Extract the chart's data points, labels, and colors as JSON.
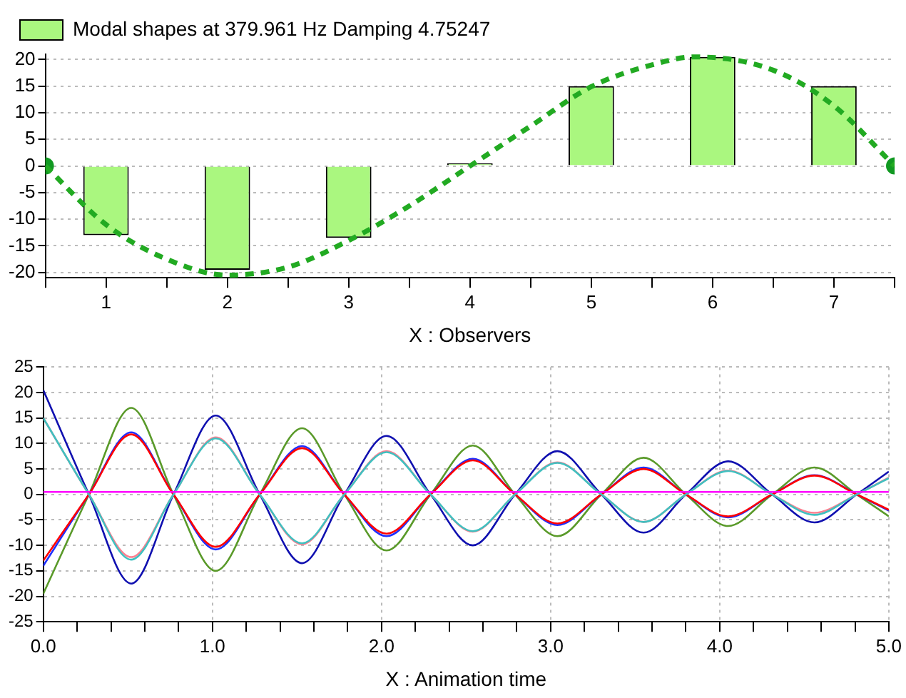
{
  "chart_data": [
    {
      "type": "bar",
      "xlabel": "X : Observers",
      "legend": "top",
      "grid": "y",
      "x": [
        1,
        2,
        3,
        4,
        5,
        6,
        7
      ],
      "xlim": [
        0.5,
        7.5
      ],
      "xticks": [
        {
          "value": 0.5,
          "label": null
        },
        1,
        {
          "value": 1.5,
          "label": null
        },
        2,
        {
          "value": 2.5,
          "label": null
        },
        3,
        {
          "value": 3.5,
          "label": null
        },
        4,
        {
          "value": 4.5,
          "label": null
        },
        5,
        {
          "value": 5.5,
          "label": null
        },
        6,
        {
          "value": 6.5,
          "label": null
        },
        7,
        {
          "value": 7.5,
          "label": null
        }
      ],
      "ylim": [
        -21,
        21
      ],
      "yticks": [
        -20,
        -15,
        -10,
        -5,
        0,
        5,
        10,
        15,
        20
      ],
      "series": [
        {
          "name": "Modal shapes at 379.961 Hz Damping 4.75247",
          "color": "#aaf77f",
          "values": [
            -13,
            -19.5,
            -13.5,
            0.5,
            15,
            20.5,
            15
          ]
        },
        {
          "type": "line",
          "color": "#22aa22",
          "line_style": "dashed",
          "marker": "none",
          "x": [
            0.5,
            1,
            1.5,
            2,
            2.5,
            3,
            3.5,
            4,
            4.5,
            5,
            5.5,
            5.85,
            6.5,
            7,
            7.5
          ],
          "values": [
            0,
            -11,
            -17.5,
            -20.5,
            -19,
            -14,
            -7.5,
            0,
            7.5,
            14.9,
            19,
            20.5,
            18,
            11.3,
            0
          ]
        },
        {
          "type": "scatter",
          "color": "#119922",
          "marker": "circle",
          "x": [
            0.5,
            7.5
          ],
          "values": [
            0,
            0
          ]
        }
      ]
    },
    {
      "type": "line",
      "xlabel": "X : Animation time",
      "legend": false,
      "grid": true,
      "marker": "none",
      "line_style": "solid",
      "x": [
        0,
        0.27,
        0.52,
        0.77,
        1.02,
        1.28,
        1.53,
        1.78,
        2.03,
        2.29,
        2.54,
        2.79,
        3.04,
        3.3,
        3.55,
        3.8,
        4.05,
        4.31,
        4.56,
        4.81,
        5.0
      ],
      "xlim": [
        0,
        5
      ],
      "xticks": [
        {
          "value": 0,
          "label": "0.0"
        },
        {
          "value": 0.2,
          "label": null
        },
        {
          "value": 0.4,
          "label": null
        },
        {
          "value": 0.6,
          "label": null
        },
        {
          "value": 0.8,
          "label": null
        },
        {
          "value": 1,
          "label": "1.0"
        },
        {
          "value": 1.2,
          "label": null
        },
        {
          "value": 1.4,
          "label": null
        },
        {
          "value": 1.6,
          "label": null
        },
        {
          "value": 1.8,
          "label": null
        },
        {
          "value": 2,
          "label": "2.0"
        },
        {
          "value": 2.2,
          "label": null
        },
        {
          "value": 2.4,
          "label": null
        },
        {
          "value": 2.6,
          "label": null
        },
        {
          "value": 2.8,
          "label": null
        },
        {
          "value": 3,
          "label": "3.0"
        },
        {
          "value": 3.2,
          "label": null
        },
        {
          "value": 3.4,
          "label": null
        },
        {
          "value": 3.6,
          "label": null
        },
        {
          "value": 3.8,
          "label": null
        },
        {
          "value": 4,
          "label": "4.0"
        },
        {
          "value": 4.2,
          "label": null
        },
        {
          "value": 4.4,
          "label": null
        },
        {
          "value": 4.6,
          "label": null
        },
        {
          "value": 4.8,
          "label": null
        },
        {
          "value": 5,
          "label": "5.0"
        }
      ],
      "ylim": [
        -25,
        25
      ],
      "yticks": [
        -25,
        -20,
        -15,
        -10,
        -5,
        0,
        5,
        10,
        15,
        20,
        25
      ],
      "series": [
        {
          "color": "#ff00ff",
          "values": [
            0.5,
            0.5,
            0.5,
            0.5,
            0.5,
            0.5,
            0.5,
            0.5,
            0.5,
            0.5,
            0.5,
            0.5,
            0.5,
            0.5,
            0.5,
            0.5,
            0.5,
            0.5,
            0.5,
            0.5,
            0.5
          ]
        },
        {
          "color": "#40c0c0",
          "values": [
            15,
            0,
            -12.8,
            0,
            11,
            0,
            -9.6,
            0,
            8.3,
            0,
            -7.2,
            0,
            6.2,
            0,
            -5.4,
            0,
            4.6,
            0,
            -4,
            0,
            3.2
          ]
        },
        {
          "color": "#ff8090",
          "values": [
            15,
            0,
            -12.3,
            0,
            11.2,
            0,
            -9.8,
            0,
            8.5,
            0,
            -7.3,
            0,
            6.3,
            0,
            -5.4,
            0,
            4.7,
            0,
            -3.6,
            0,
            3.3
          ]
        },
        {
          "color": "#ff0000",
          "values": [
            -13,
            0,
            11.8,
            0,
            -10.3,
            0,
            9.1,
            0,
            -7.7,
            0,
            6.7,
            0,
            -5.7,
            0,
            5,
            0,
            -4.3,
            0,
            3.7,
            0,
            -3
          ]
        },
        {
          "color": "#2030ff",
          "values": [
            -14,
            0,
            12.2,
            0,
            -10.8,
            0,
            9.5,
            0,
            -8.2,
            0,
            7,
            0,
            -6,
            0,
            5.3,
            0,
            -4.5,
            0,
            3.8,
            0,
            -3.2
          ]
        },
        {
          "color": "#5a9a2a",
          "values": [
            -19.5,
            0,
            17,
            0,
            -15,
            0,
            13,
            0,
            -11,
            0,
            9.6,
            0,
            -8.2,
            0,
            7.2,
            0,
            -6.2,
            0,
            5.3,
            0,
            -4.3
          ]
        },
        {
          "color": "#1010b0",
          "values": [
            20.5,
            0,
            -17.5,
            0,
            15.5,
            0,
            -13.5,
            0,
            11.5,
            0,
            -10,
            0,
            8.5,
            0,
            -7.5,
            0,
            6.5,
            0,
            -5.5,
            0,
            4.5
          ]
        }
      ]
    }
  ]
}
